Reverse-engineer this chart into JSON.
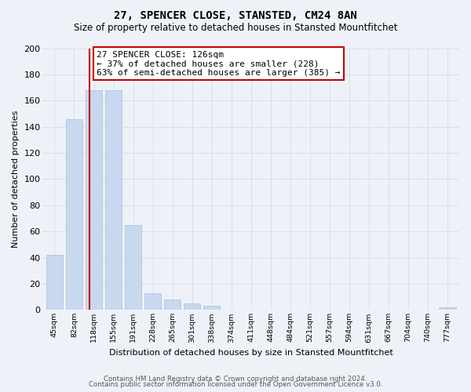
{
  "title": "27, SPENCER CLOSE, STANSTED, CM24 8AN",
  "subtitle": "Size of property relative to detached houses in Stansted Mountfitchet",
  "bar_labels": [
    "45sqm",
    "82sqm",
    "118sqm",
    "155sqm",
    "191sqm",
    "228sqm",
    "265sqm",
    "301sqm",
    "338sqm",
    "374sqm",
    "411sqm",
    "448sqm",
    "484sqm",
    "521sqm",
    "557sqm",
    "594sqm",
    "631sqm",
    "667sqm",
    "704sqm",
    "740sqm",
    "777sqm"
  ],
  "bar_values": [
    42,
    146,
    168,
    168,
    65,
    13,
    8,
    5,
    3,
    0,
    0,
    0,
    0,
    0,
    0,
    0,
    0,
    0,
    0,
    0,
    2
  ],
  "bar_color": "#c8d8ee",
  "bar_edge_color": "#a8c0df",
  "vline_color": "#cc0000",
  "annotation_text": "27 SPENCER CLOSE: 126sqm\n← 37% of detached houses are smaller (228)\n63% of semi-detached houses are larger (385) →",
  "ylabel": "Number of detached properties",
  "xlabel": "Distribution of detached houses by size in Stansted Mountfitchet",
  "ylim": [
    0,
    200
  ],
  "yticks": [
    0,
    20,
    40,
    60,
    80,
    100,
    120,
    140,
    160,
    180,
    200
  ],
  "footer_line1": "Contains HM Land Registry data © Crown copyright and database right 2024.",
  "footer_line2": "Contains public sector information licensed under the Open Government Licence v3.0.",
  "bg_color": "#eef2f8",
  "grid_color": "#d8e0ec",
  "title_fontsize": 10,
  "subtitle_fontsize": 8.5,
  "annotation_fontsize": 8
}
